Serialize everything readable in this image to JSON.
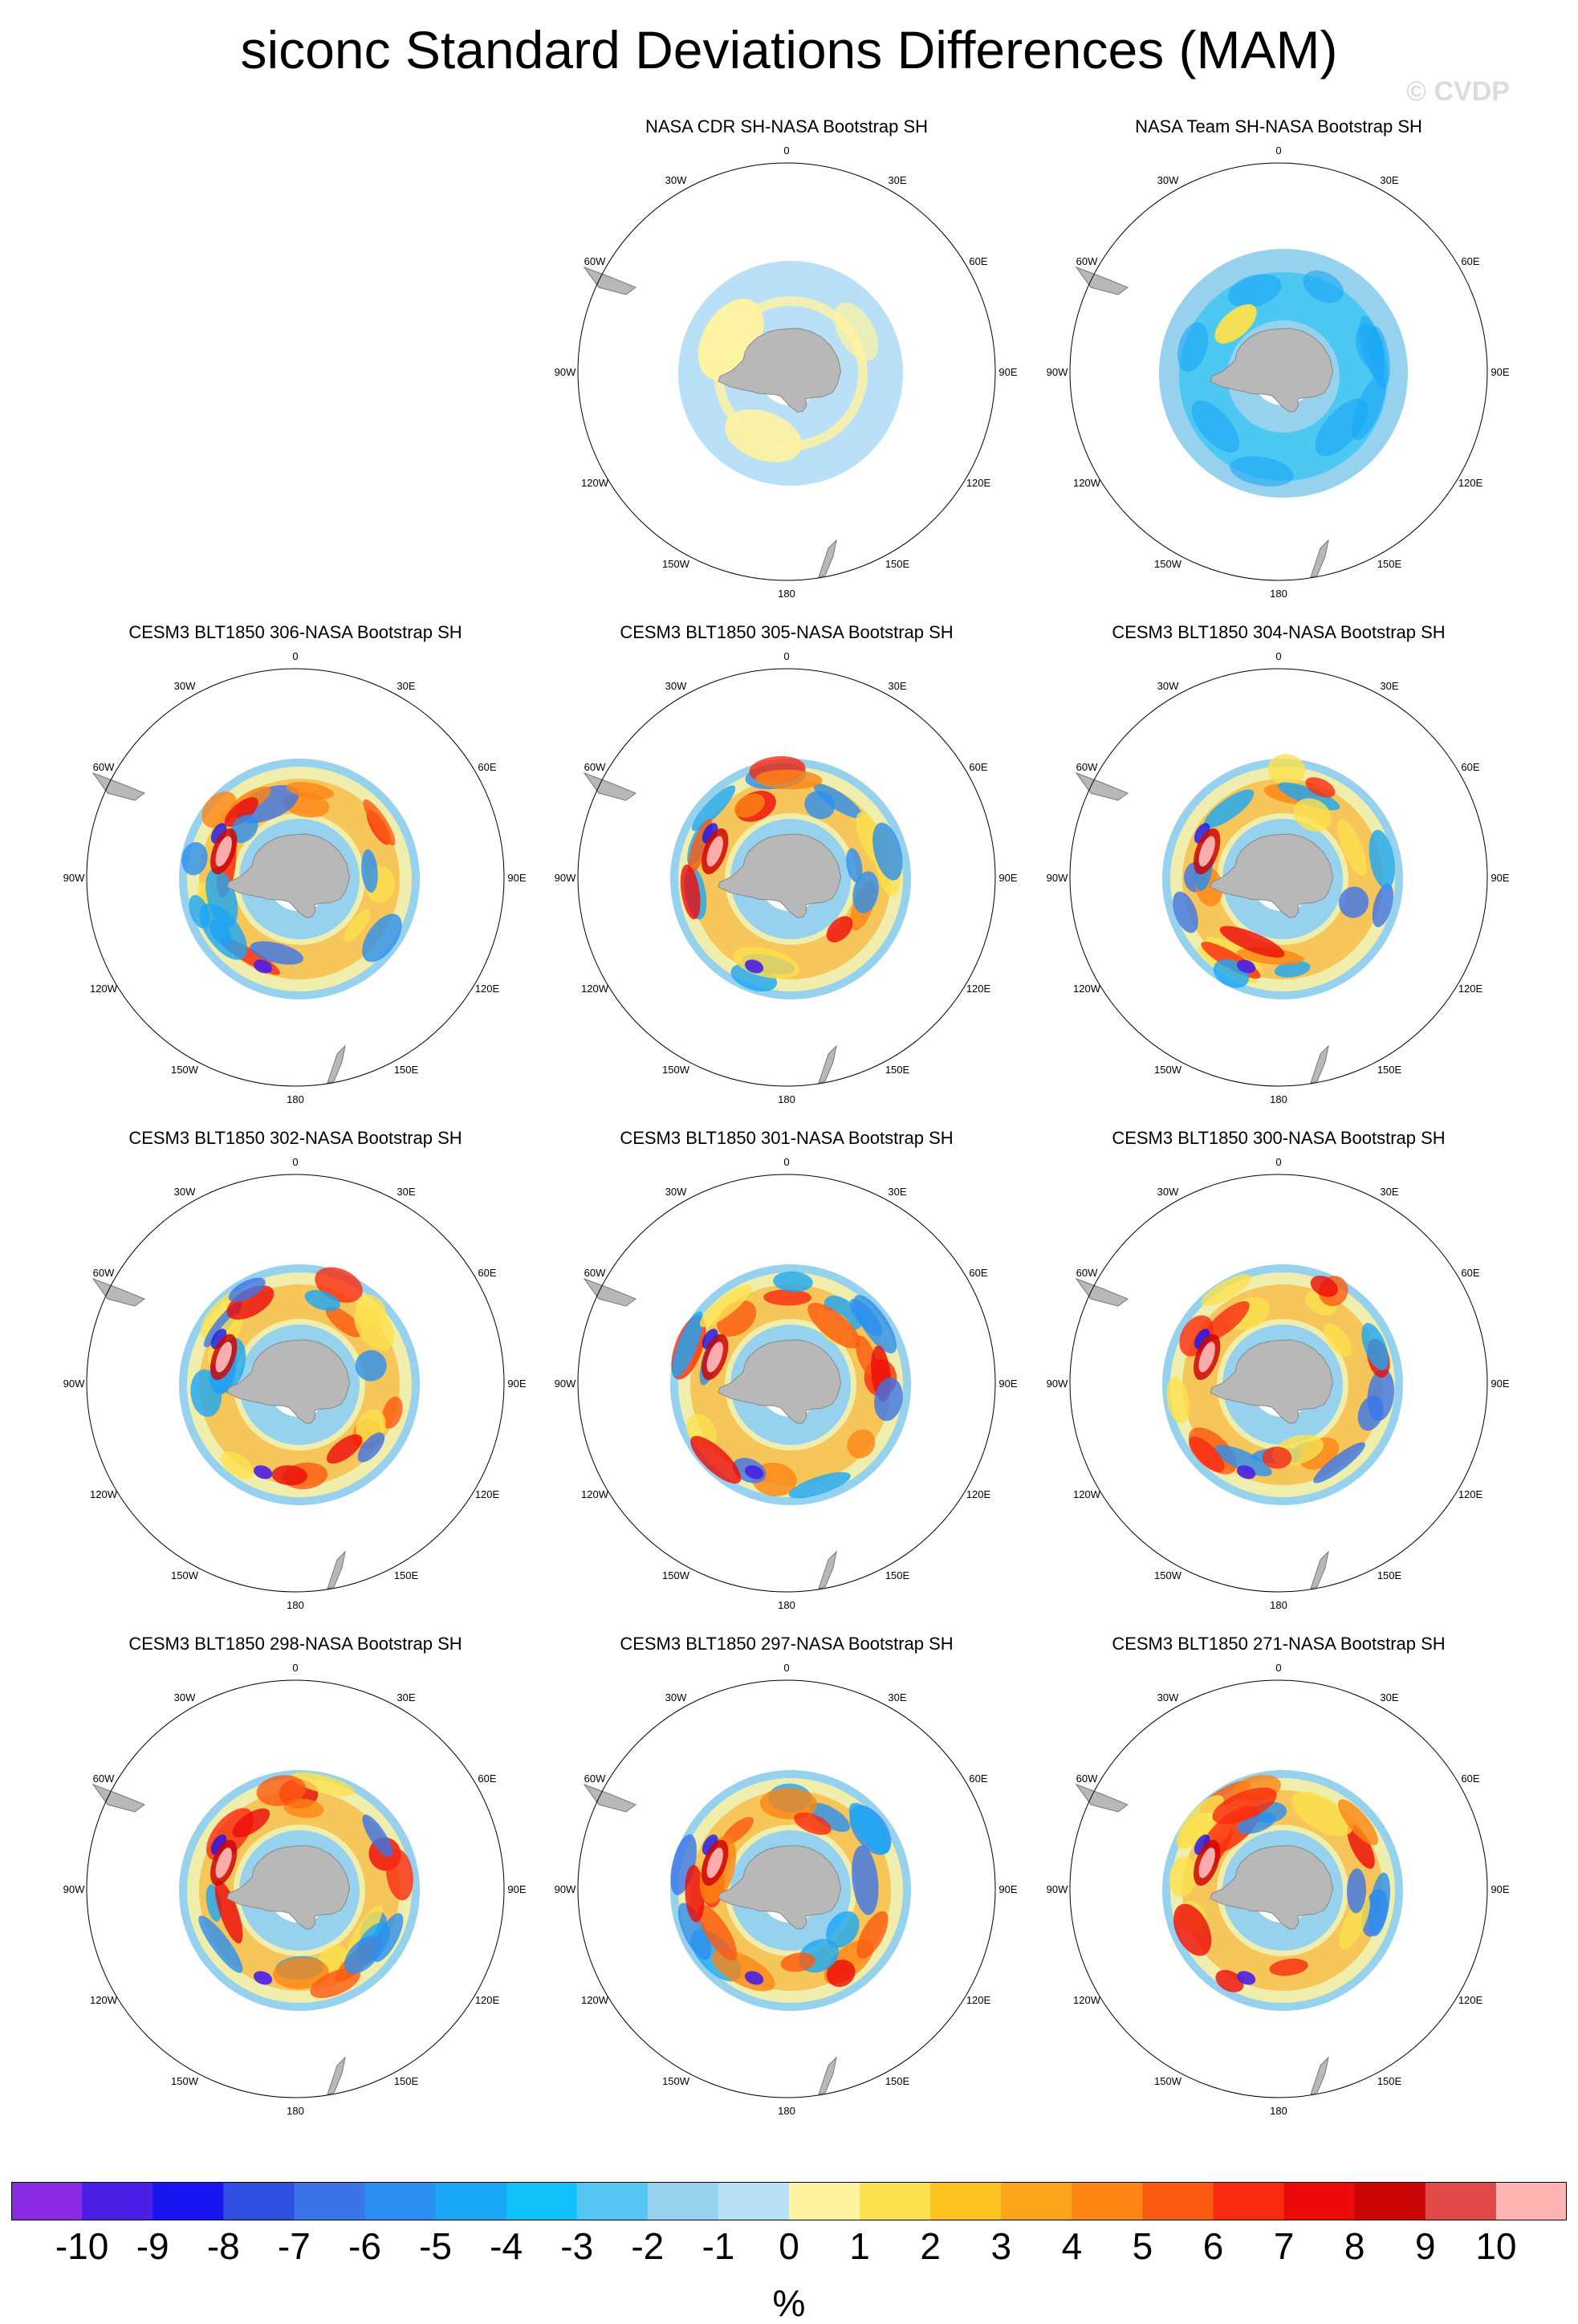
{
  "title": "siconc Standard Deviations Differences (MAM)",
  "watermark": "© CVDP",
  "units": "%",
  "lon_labels": [
    "0",
    "30E",
    "60E",
    "90E",
    "120E",
    "150E",
    "180",
    "150W",
    "120W",
    "90W",
    "60W",
    "30W"
  ],
  "colorbar": {
    "labels": [
      "-10",
      "-9",
      "-8",
      "-7",
      "-6",
      "-5",
      "-4",
      "-3",
      "-2",
      "-1",
      "0",
      "1",
      "2",
      "3",
      "4",
      "5",
      "6",
      "7",
      "8",
      "9",
      "10"
    ],
    "colors": [
      "#8a2be2",
      "#4b1fe6",
      "#1a14f0",
      "#2f4fe0",
      "#3b74e8",
      "#2a8ff0",
      "#1aa6f6",
      "#10c0f8",
      "#56c6f2",
      "#96d2ee",
      "#b9e0f6",
      "#fff3a0",
      "#fde14e",
      "#fcc320",
      "#fca51a",
      "#fc8514",
      "#fc5a10",
      "#fa2a10",
      "#ec0a0a",
      "#cc0606",
      "#e0484a",
      "#ffb4b4"
    ]
  },
  "panels": [
    {
      "title": "NASA CDR SH-NASA Bootstrap SH",
      "style": "cdr"
    },
    {
      "title": "NASA Team SH-NASA Bootstrap SH",
      "style": "team"
    },
    {
      "title": "CESM3 BLT1850 306-NASA Bootstrap SH",
      "style": "model"
    },
    {
      "title": "CESM3 BLT1850 305-NASA Bootstrap SH",
      "style": "model"
    },
    {
      "title": "CESM3 BLT1850 304-NASA Bootstrap SH",
      "style": "model"
    },
    {
      "title": "CESM3 BLT1850 302-NASA Bootstrap SH",
      "style": "model"
    },
    {
      "title": "CESM3 BLT1850 301-NASA Bootstrap SH",
      "style": "model"
    },
    {
      "title": "CESM3 BLT1850 300-NASA Bootstrap SH",
      "style": "model"
    },
    {
      "title": "CESM3 BLT1850 298-NASA Bootstrap SH",
      "style": "model"
    },
    {
      "title": "CESM3 BLT1850 297-NASA Bootstrap SH",
      "style": "model"
    },
    {
      "title": "CESM3 BLT1850 271-NASA Bootstrap SH",
      "style": "model"
    }
  ]
}
